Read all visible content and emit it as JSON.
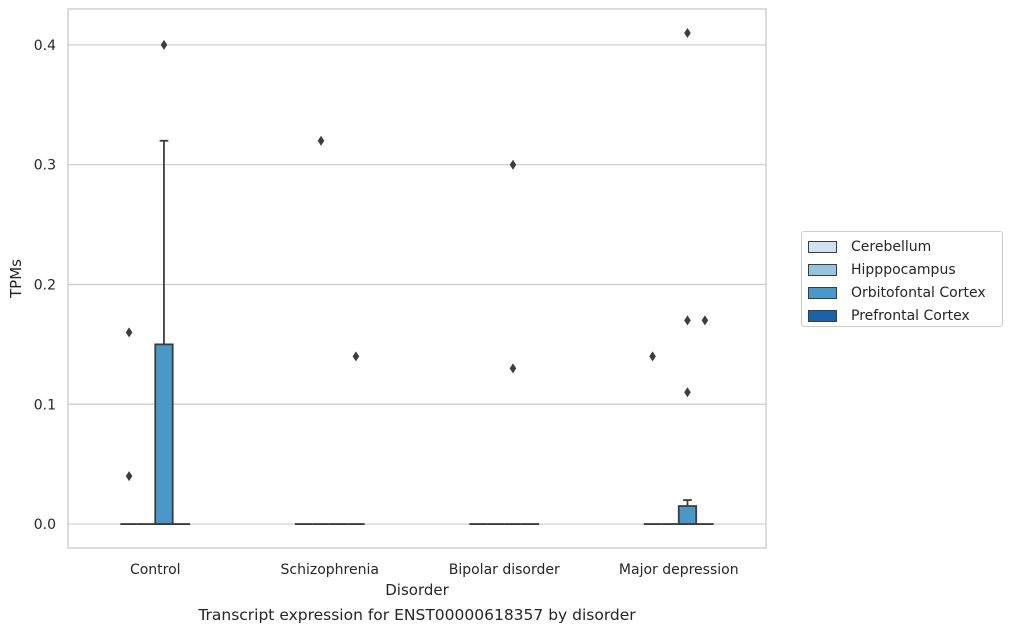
{
  "caption": "Transcript expression for ENST00000618357 by disorder",
  "chart_data": {
    "type": "box",
    "title": "",
    "xlabel": "Disorder",
    "ylabel": "TPMs",
    "ylim": [
      -0.02,
      0.43
    ],
    "yticks": [
      0.0,
      0.1,
      0.2,
      0.3,
      0.4
    ],
    "ytick_labels": [
      "0.0",
      "0.1",
      "0.2",
      "0.3",
      "0.4"
    ],
    "grid": "horizontal",
    "legend_position": "right",
    "categories": [
      "Control",
      "Schizophrenia",
      "Bipolar disorder",
      "Major depression"
    ],
    "series": [
      {
        "name": "Cerebellum",
        "color": "#d0e1f2",
        "boxes": [
          {
            "q1": 0,
            "median": 0,
            "q3": 0,
            "whisker_low": 0,
            "whisker_high": 0,
            "outliers": [
              0.04,
              0.16
            ]
          },
          {
            "q1": 0,
            "median": 0,
            "q3": 0,
            "whisker_low": 0,
            "whisker_high": 0,
            "outliers": []
          },
          {
            "q1": 0,
            "median": 0,
            "q3": 0,
            "whisker_low": 0,
            "whisker_high": 0,
            "outliers": []
          },
          {
            "q1": 0,
            "median": 0,
            "q3": 0,
            "whisker_low": 0,
            "whisker_high": 0,
            "outliers": [
              0.14
            ]
          }
        ]
      },
      {
        "name": "Hipppocampus",
        "color": "#94c4df",
        "boxes": [
          {
            "q1": 0,
            "median": 0,
            "q3": 0,
            "whisker_low": 0,
            "whisker_high": 0,
            "outliers": []
          },
          {
            "q1": 0,
            "median": 0,
            "q3": 0,
            "whisker_low": 0,
            "whisker_high": 0,
            "outliers": [
              0.32
            ]
          },
          {
            "q1": 0,
            "median": 0,
            "q3": 0,
            "whisker_low": 0,
            "whisker_high": 0,
            "outliers": []
          },
          {
            "q1": 0,
            "median": 0,
            "q3": 0,
            "whisker_low": 0,
            "whisker_high": 0,
            "outliers": []
          }
        ]
      },
      {
        "name": "Orbitofontal Cortex",
        "color": "#4a98c9",
        "boxes": [
          {
            "q1": 0,
            "median": 0,
            "q3": 0.15,
            "whisker_low": 0,
            "whisker_high": 0.32,
            "outliers": [
              0.4
            ]
          },
          {
            "q1": 0,
            "median": 0,
            "q3": 0,
            "whisker_low": 0,
            "whisker_high": 0,
            "outliers": []
          },
          {
            "q1": 0,
            "median": 0,
            "q3": 0,
            "whisker_low": 0,
            "whisker_high": 0,
            "outliers": [
              0.3,
              0.13
            ]
          },
          {
            "q1": 0,
            "median": 0,
            "q3": 0.015,
            "whisker_low": 0,
            "whisker_high": 0.02,
            "outliers": [
              0.41,
              0.17,
              0.11
            ]
          }
        ]
      },
      {
        "name": "Prefrontal Cortex",
        "color": "#1764ab",
        "boxes": [
          {
            "q1": 0,
            "median": 0,
            "q3": 0,
            "whisker_low": 0,
            "whisker_high": 0,
            "outliers": []
          },
          {
            "q1": 0,
            "median": 0,
            "q3": 0,
            "whisker_low": 0,
            "whisker_high": 0,
            "outliers": [
              0.14
            ]
          },
          {
            "q1": 0,
            "median": 0,
            "q3": 0,
            "whisker_low": 0,
            "whisker_high": 0,
            "outliers": []
          },
          {
            "q1": 0,
            "median": 0,
            "q3": 0,
            "whisker_low": 0,
            "whisker_high": 0,
            "outliers": [
              0.17
            ]
          }
        ]
      }
    ]
  }
}
